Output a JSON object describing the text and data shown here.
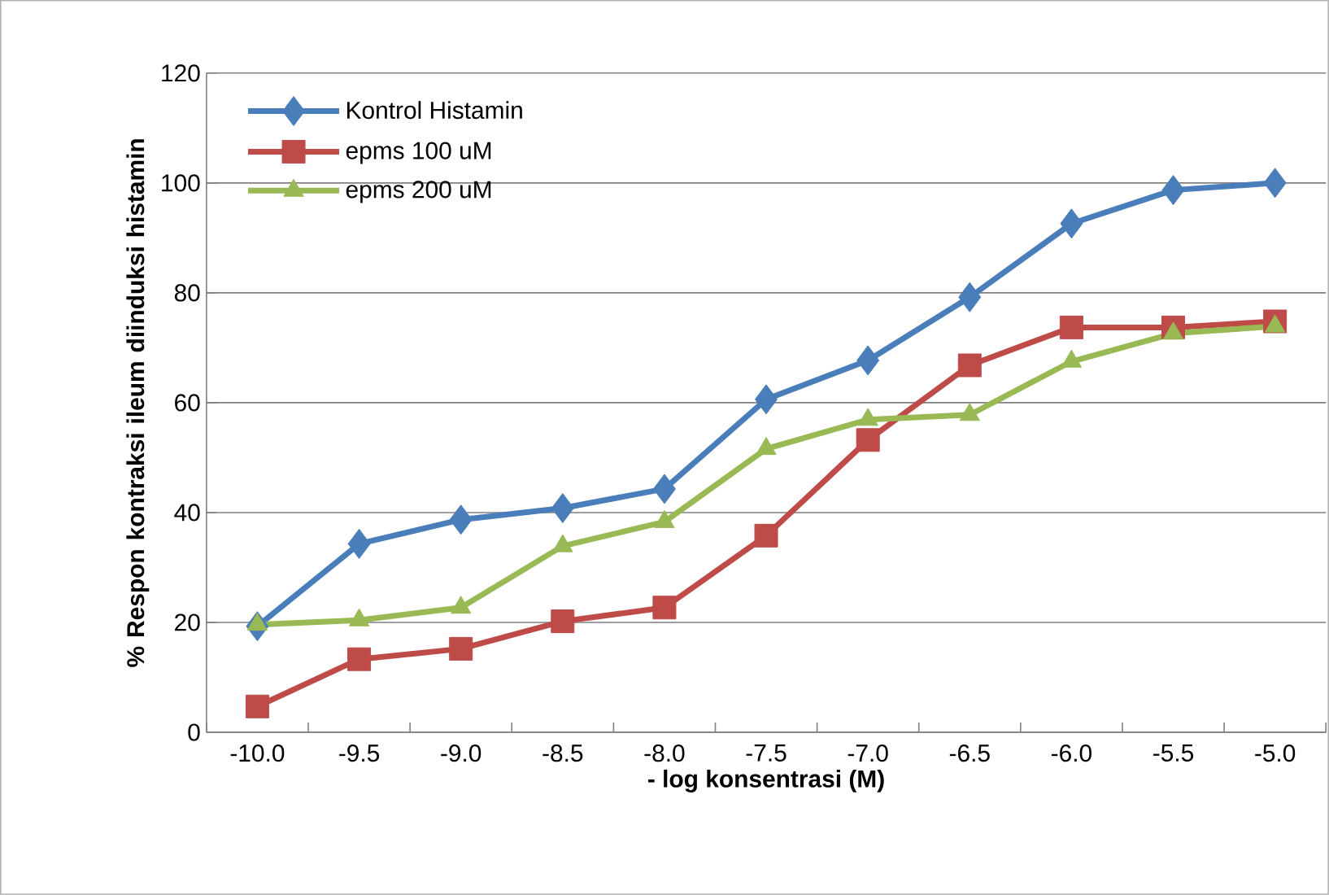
{
  "chart_data": {
    "type": "line",
    "xlabel": "- log konsentrasi (M)",
    "ylabel": "% Respon kontraksi ileum  diinduksi histamin",
    "categories": [
      "-10.0",
      "-9.5",
      "-9.0",
      "-8.5",
      "-8.0",
      "-7.5",
      "-7.0",
      "-6.5",
      "-6.0",
      "-5.5",
      "-5.0"
    ],
    "series": [
      {
        "name": "Kontrol Histamin",
        "color": "#4a7ebb",
        "marker": "diamond",
        "values": [
          19.3,
          34.3,
          38.7,
          40.8,
          44.3,
          60.6,
          67.7,
          79.2,
          92.6,
          98.7,
          100
        ]
      },
      {
        "name": "epms 100 uM",
        "color": "#be4b48",
        "marker": "square",
        "values": [
          4.7,
          13.3,
          15.2,
          20.2,
          22.7,
          35.8,
          53.2,
          66.8,
          73.7,
          73.7,
          74.8
        ]
      },
      {
        "name": "epms 200 uM",
        "color": "#98b954",
        "marker": "triangle",
        "values": [
          19.6,
          20.4,
          22.7,
          33.9,
          38.3,
          51.6,
          56.9,
          57.8,
          67.5,
          72.6,
          73.9
        ]
      }
    ],
    "ylim": [
      0,
      120
    ],
    "yticks": [
      0,
      20,
      40,
      60,
      80,
      100,
      120
    ],
    "grid": "y",
    "legend": "top left",
    "line_style": "solid"
  }
}
